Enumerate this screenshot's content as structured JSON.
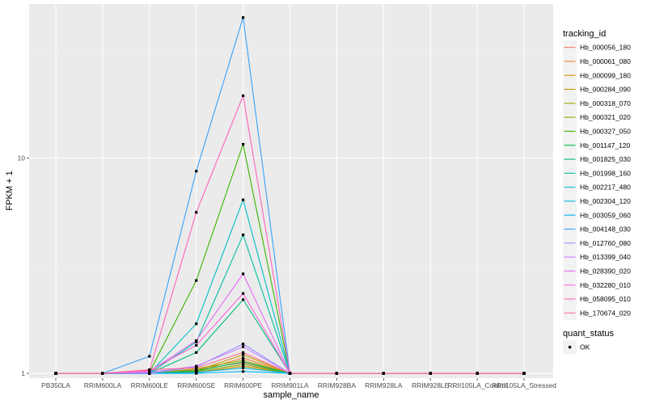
{
  "chart_data": {
    "type": "line",
    "xlabel": "sample_name",
    "ylabel": "FPKM + 1",
    "y_scale": "log10",
    "ylim": [
      0.95,
      52
    ],
    "y_ticks": [
      1,
      10
    ],
    "y_tick_labels": [
      "1",
      "10"
    ],
    "grid": true,
    "legend_position": "right",
    "categories": [
      "PB350LA",
      "RRIM600LA",
      "RRIM600LE",
      "RRIM600SE",
      "RRIM600PE",
      "RRIM901LA",
      "RRIM928BA",
      "RRIM928LA",
      "RRIM928LE",
      "RRII105LA_Control",
      "RRII105LA_Stressed"
    ],
    "legend_title": "tracking_id",
    "series": [
      {
        "name": "Hb_000056_180",
        "color": "#F8766D",
        "values": [
          1,
          1,
          1,
          1.04,
          1.12,
          1,
          1,
          1,
          1,
          1,
          1
        ]
      },
      {
        "name": "Hb_000061_080",
        "color": "#EA8331",
        "values": [
          1,
          1,
          1,
          1.02,
          1.18,
          1,
          1,
          1,
          1,
          1,
          1
        ]
      },
      {
        "name": "Hb_000099_180",
        "color": "#D89000",
        "values": [
          1,
          1,
          1,
          1.01,
          1.08,
          1,
          1,
          1,
          1,
          1,
          1
        ]
      },
      {
        "name": "Hb_000284_090",
        "color": "#C09B00",
        "values": [
          1,
          1,
          1,
          1.03,
          1.22,
          1,
          1,
          1,
          1,
          1,
          1
        ]
      },
      {
        "name": "Hb_000318_070",
        "color": "#A3A500",
        "values": [
          1,
          1,
          1,
          1.05,
          1.15,
          1,
          1,
          1,
          1,
          1,
          1
        ]
      },
      {
        "name": "Hb_000321_020",
        "color": "#7CAE00",
        "values": [
          1,
          1,
          1,
          1.02,
          1.1,
          1,
          1,
          1,
          1,
          1,
          1
        ]
      },
      {
        "name": "Hb_000327_050",
        "color": "#39B600",
        "values": [
          1,
          1,
          1.01,
          2.7,
          11.6,
          1,
          1,
          1,
          1,
          1,
          1
        ]
      },
      {
        "name": "Hb_001147_120",
        "color": "#00BB4E",
        "values": [
          1,
          1,
          1,
          1.03,
          1.13,
          1,
          1,
          1,
          1,
          1,
          1
        ]
      },
      {
        "name": "Hb_001825_030",
        "color": "#00BF7D",
        "values": [
          1,
          1,
          1,
          1.25,
          2.2,
          1,
          1,
          1,
          1,
          1,
          1
        ]
      },
      {
        "name": "Hb_001998_160",
        "color": "#00C1A3",
        "values": [
          1,
          1,
          1,
          1.4,
          4.4,
          1,
          1,
          1,
          1,
          1,
          1
        ]
      },
      {
        "name": "Hb_002217_480",
        "color": "#00BFC4",
        "values": [
          1,
          1,
          1,
          1.7,
          6.4,
          1,
          1,
          1,
          1,
          1,
          1
        ]
      },
      {
        "name": "Hb_002304_120",
        "color": "#00BAE0",
        "values": [
          1,
          1,
          1,
          1.01,
          1.06,
          1,
          1,
          1,
          1,
          1,
          1
        ]
      },
      {
        "name": "Hb_003059_060",
        "color": "#00B0F6",
        "values": [
          1,
          1,
          1,
          1.0,
          1.02,
          1,
          1,
          1,
          1,
          1,
          1
        ]
      },
      {
        "name": "Hb_004148_030",
        "color": "#35A2FF",
        "values": [
          1,
          1,
          1.2,
          8.7,
          45,
          1,
          1,
          1,
          1,
          1,
          1
        ]
      },
      {
        "name": "Hb_012760_080",
        "color": "#9590FF",
        "values": [
          1,
          1,
          1,
          1.07,
          1.37,
          1,
          1,
          1,
          1,
          1,
          1
        ]
      },
      {
        "name": "Hb_013399_040",
        "color": "#C77CFF",
        "values": [
          1,
          1,
          1.01,
          1.08,
          1.33,
          1,
          1,
          1,
          1,
          1,
          1
        ]
      },
      {
        "name": "Hb_028390_020",
        "color": "#E76BF3",
        "values": [
          1,
          1,
          1.02,
          1.42,
          2.9,
          1,
          1,
          1,
          1,
          1,
          1
        ]
      },
      {
        "name": "Hb_032280_010",
        "color": "#FA62DB",
        "values": [
          1,
          1,
          1.03,
          1.35,
          2.35,
          1,
          1,
          1,
          1,
          1,
          1
        ]
      },
      {
        "name": "Hb_058095_010",
        "color": "#FF62BC",
        "values": [
          1,
          1,
          1.03,
          5.6,
          19.5,
          1,
          1,
          1,
          1,
          1,
          1
        ]
      },
      {
        "name": "Hb_170674_020",
        "color": "#FF6C91",
        "values": [
          1,
          1,
          1.04,
          1.06,
          1.25,
          1,
          1,
          1,
          1,
          1,
          1
        ]
      }
    ],
    "shape_legend_title": "quant_status",
    "shape_legend_items": [
      "OK"
    ]
  }
}
